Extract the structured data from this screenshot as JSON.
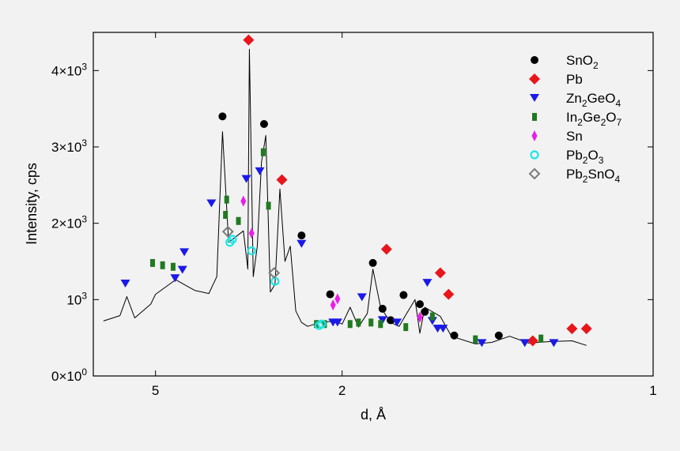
{
  "chart_data": {
    "type": "scatter",
    "title": "",
    "xlabel": "d, Å",
    "ylabel": "Intensity, cps",
    "x_scale": "reciprocal",
    "xlim": [
      10,
      1
    ],
    "ylim": [
      0,
      4500
    ],
    "x_ticks": [
      {
        "value": 5,
        "label": "5"
      },
      {
        "value": 2,
        "label": "2"
      },
      {
        "value": 1,
        "label": "1"
      }
    ],
    "y_ticks": [
      {
        "value": 0,
        "base": "0×10",
        "exp": "0"
      },
      {
        "value": 1000,
        "base": "10",
        "exp": "3"
      },
      {
        "value": 2000,
        "base": "2×10",
        "exp": "3"
      },
      {
        "value": 3000,
        "base": "3×10",
        "exp": "3"
      },
      {
        "value": 4000,
        "base": "4×10",
        "exp": "3"
      }
    ],
    "grid": false,
    "legend_position": "top-right",
    "pattern_line": {
      "color": "#000000",
      "points": [
        [
          8.6,
          720
        ],
        [
          7.0,
          790
        ],
        [
          6.5,
          1040
        ],
        [
          6.0,
          760
        ],
        [
          5.2,
          940
        ],
        [
          5.0,
          1070
        ],
        [
          4.5,
          1200
        ],
        [
          4.3,
          1260
        ],
        [
          4.0,
          1180
        ],
        [
          3.8,
          1120
        ],
        [
          3.5,
          1080
        ],
        [
          3.35,
          1300
        ],
        [
          3.25,
          3200
        ],
        [
          3.15,
          1750
        ],
        [
          3.0,
          1850
        ],
        [
          2.93,
          1900
        ],
        [
          2.87,
          1400
        ],
        [
          2.85,
          4280
        ],
        [
          2.8,
          1300
        ],
        [
          2.75,
          1700
        ],
        [
          2.7,
          2800
        ],
        [
          2.65,
          3150
        ],
        [
          2.6,
          1100
        ],
        [
          2.55,
          1200
        ],
        [
          2.5,
          2450
        ],
        [
          2.45,
          1500
        ],
        [
          2.4,
          1700
        ],
        [
          2.35,
          850
        ],
        [
          2.3,
          700
        ],
        [
          2.25,
          650
        ],
        [
          2.15,
          700
        ],
        [
          2.05,
          720
        ],
        [
          2.0,
          680
        ],
        [
          1.95,
          900
        ],
        [
          1.9,
          640
        ],
        [
          1.85,
          820
        ],
        [
          1.82,
          1400
        ],
        [
          1.78,
          900
        ],
        [
          1.73,
          700
        ],
        [
          1.69,
          650
        ],
        [
          1.66,
          800
        ],
        [
          1.62,
          1000
        ],
        [
          1.6,
          560
        ],
        [
          1.58,
          900
        ],
        [
          1.52,
          780
        ],
        [
          1.48,
          520
        ],
        [
          1.4,
          420
        ],
        [
          1.35,
          440
        ],
        [
          1.3,
          520
        ],
        [
          1.25,
          430
        ],
        [
          1.2,
          450
        ],
        [
          1.15,
          460
        ],
        [
          1.12,
          400
        ]
      ]
    },
    "series": [
      {
        "name": "SnO",
        "sub": "2",
        "marker": "circle",
        "color": "#000000",
        "points": [
          [
            3.25,
            3400
          ],
          [
            2.67,
            3300
          ],
          [
            2.3,
            1840
          ],
          [
            2.08,
            1070
          ],
          [
            1.82,
            1480
          ],
          [
            1.77,
            880
          ],
          [
            1.73,
            730
          ],
          [
            1.67,
            1060
          ],
          [
            1.6,
            940
          ],
          [
            1.58,
            840
          ],
          [
            1.47,
            530
          ],
          [
            1.33,
            530
          ]
        ]
      },
      {
        "name": "Pb",
        "sub": "",
        "marker": "diamond",
        "color": "#e8161b",
        "points": [
          [
            2.86,
            4400
          ],
          [
            2.48,
            2570
          ],
          [
            1.75,
            1660
          ],
          [
            1.52,
            1350
          ],
          [
            1.49,
            1070
          ],
          [
            1.24,
            460
          ],
          [
            1.15,
            620
          ],
          [
            1.12,
            620
          ]
        ]
      },
      {
        "name": "Zn",
        "sub": "2",
        "rest": "GeO",
        "sub2": "4",
        "marker": "triangle-down",
        "color": "#1a1ae6",
        "points": [
          [
            6.6,
            1210
          ],
          [
            4.32,
            1280
          ],
          [
            4.11,
            1390
          ],
          [
            4.06,
            1620
          ],
          [
            3.45,
            2260
          ],
          [
            2.89,
            2580
          ],
          [
            2.72,
            2680
          ],
          [
            2.3,
            1730
          ],
          [
            2.06,
            700
          ],
          [
            2.03,
            700
          ],
          [
            1.88,
            1030
          ],
          [
            1.77,
            730
          ],
          [
            1.7,
            700
          ],
          [
            1.57,
            1220
          ],
          [
            1.55,
            720
          ],
          [
            1.53,
            620
          ],
          [
            1.51,
            620
          ],
          [
            1.38,
            430
          ],
          [
            1.26,
            430
          ],
          [
            1.19,
            430
          ]
        ]
      },
      {
        "name": "In",
        "sub": "2",
        "rest": "Ge",
        "sub2": "2",
        "rest2": "O",
        "sub3": "7",
        "marker": "bar",
        "color": "#207a20",
        "points": [
          [
            5.12,
            1480
          ],
          [
            4.73,
            1450
          ],
          [
            4.38,
            1430
          ],
          [
            3.18,
            2310
          ],
          [
            3.2,
            2110
          ],
          [
            3.0,
            2030
          ],
          [
            2.68,
            2930
          ],
          [
            2.62,
            2230
          ],
          [
            2.18,
            680
          ],
          [
            2.12,
            680
          ],
          [
            1.95,
            680
          ],
          [
            1.9,
            700
          ],
          [
            1.83,
            700
          ],
          [
            1.78,
            680
          ],
          [
            1.66,
            640
          ],
          [
            1.55,
            780
          ],
          [
            1.4,
            480
          ],
          [
            1.22,
            490
          ]
        ]
      },
      {
        "name": "Sn",
        "sub": "",
        "marker": "thin-diamond",
        "color": "#e81ee8",
        "points": [
          [
            2.93,
            2290
          ],
          [
            2.82,
            1870
          ],
          [
            2.06,
            930
          ],
          [
            2.03,
            1010
          ],
          [
            1.6,
            770
          ]
        ]
      },
      {
        "name": "Pb",
        "sub": "2",
        "rest": "O",
        "sub2": "3",
        "marker": "open-circle",
        "color": "#1ee6e6",
        "points": [
          [
            3.13,
            1750
          ],
          [
            3.09,
            1790
          ],
          [
            2.82,
            1640
          ],
          [
            2.55,
            1240
          ],
          [
            2.16,
            660
          ],
          [
            2.14,
            680
          ]
        ]
      },
      {
        "name": "Pb",
        "sub": "2",
        "rest": "SnO",
        "sub2": "4",
        "marker": "open-diamond",
        "color": "#7a7a7a",
        "points": [
          [
            3.16,
            1890
          ],
          [
            2.56,
            1350
          ]
        ]
      }
    ]
  }
}
